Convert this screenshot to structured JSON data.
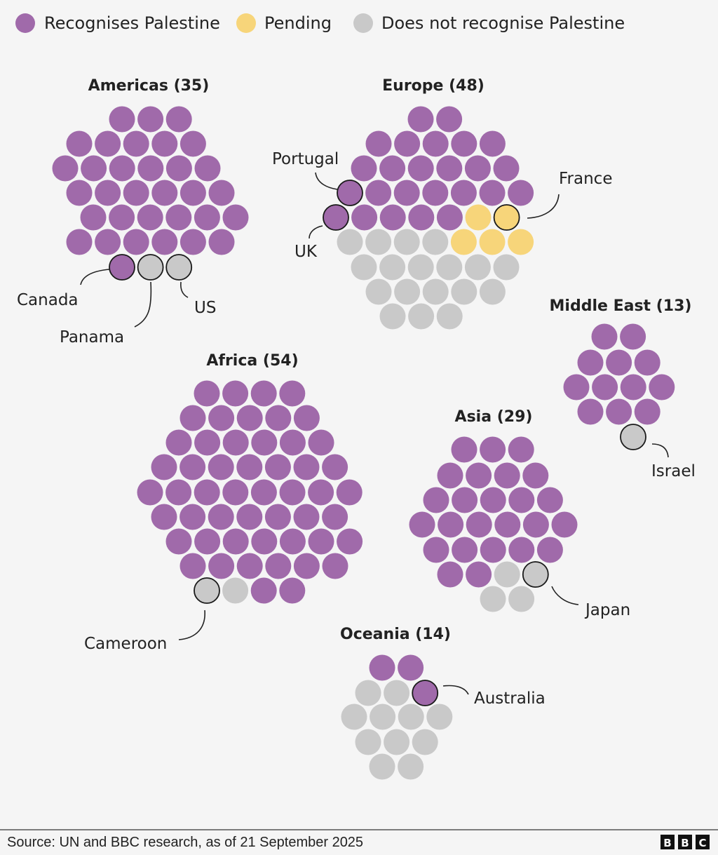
{
  "colors": {
    "recognises": "#a06aaa",
    "pending": "#f7d57a",
    "not_recognise": "#c9c9c9",
    "background": "#f5f5f5"
  },
  "legend": [
    {
      "key": "recognises",
      "label": "Recognises Palestine"
    },
    {
      "key": "pending",
      "label": "Pending"
    },
    {
      "key": "not_recognise",
      "label": "Does not recognise Palestine"
    }
  ],
  "chart_data": {
    "type": "dot-grid",
    "regions": [
      {
        "id": "americas",
        "title": "Americas (35)",
        "recognises": 33,
        "pending": 0,
        "not_recognise": 2,
        "rows": [
          "ppp",
          "ppppp",
          "pppppp",
          "pppppp",
          "pppppp",
          "pppppp",
          "pgg"
        ],
        "highlights": [
          {
            "country": "Canada",
            "row": 6,
            "index": 0
          },
          {
            "country": "Panama",
            "row": 6,
            "index": 1
          },
          {
            "country": "US",
            "row": 6,
            "index": 2
          }
        ]
      },
      {
        "id": "europe",
        "title": "Europe (48)",
        "recognises": 25,
        "pending": 5,
        "not_recognise": 18,
        "rows": [
          "pp",
          "ppppp",
          "pppppp",
          "ppppppp",
          "pppppyy",
          "ggggyyy",
          "gggggg",
          "ggggg",
          "ggg"
        ],
        "highlights": [
          {
            "country": "Portugal",
            "row": 3,
            "index": 0
          },
          {
            "country": "UK",
            "row": 4,
            "index": 0
          },
          {
            "country": "France",
            "row": 4,
            "index": 6
          }
        ]
      },
      {
        "id": "middle-east",
        "title": "Middle East (13)",
        "recognises": 12,
        "pending": 0,
        "not_recognise": 1,
        "rows": [
          "pp",
          "ppp",
          "pppp",
          "ppp",
          "g"
        ],
        "highlights": [
          {
            "country": "Israel",
            "row": 4,
            "index": 0
          }
        ]
      },
      {
        "id": "africa",
        "title": "Africa (54)",
        "recognises": 52,
        "pending": 0,
        "not_recognise": 2,
        "rows": [
          "pppp",
          "ppppp",
          "pppppp",
          "ppppppp",
          "pppppppp",
          "ppppppp",
          "ppppppp",
          "pppppp",
          "ggpp"
        ],
        "highlights": [
          {
            "country": "Cameroon",
            "row": 8,
            "index": 0
          }
        ]
      },
      {
        "id": "asia",
        "title": "Asia (29)",
        "recognises": 25,
        "pending": 0,
        "not_recognise": 4,
        "rows": [
          "ppp",
          "pppp",
          "ppppp",
          "pppppp",
          "ppppp",
          "ppgg",
          "gg"
        ],
        "highlights": [
          {
            "country": "Japan",
            "row": 5,
            "index": 3
          }
        ]
      },
      {
        "id": "oceania",
        "title": "Oceania (14)",
        "recognises": 3,
        "pending": 0,
        "not_recognise": 11,
        "rows": [
          "pp",
          "ggp",
          "gggg",
          "ggg",
          "gg"
        ],
        "highlights": [
          {
            "country": "Australia",
            "row": 1,
            "index": 2
          }
        ]
      }
    ]
  },
  "footer": {
    "source": "Source: UN and BBC research, as of 21 September 2025",
    "logo": "BBC"
  }
}
